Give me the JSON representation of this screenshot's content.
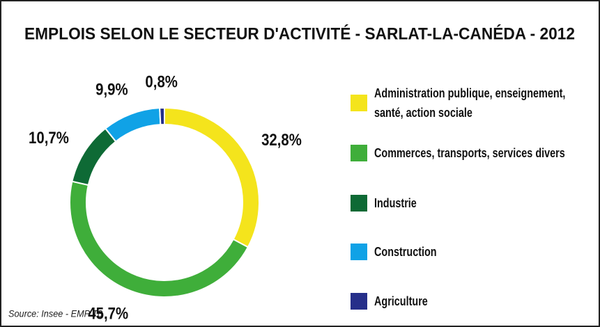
{
  "chart_data": {
    "type": "donut",
    "title": "EMPLOIS SELON LE SECTEUR D'ACTIVITÉ - SARLAT-LA-CANÉDA - 2012",
    "categories": [
      "Administration publique, enseignement, santé, action sociale",
      "Commerces, transports, services divers",
      "Industrie",
      "Construction",
      "Agriculture"
    ],
    "values": [
      32.8,
      45.7,
      10.7,
      9.9,
      0.8
    ],
    "value_labels": [
      "32,8%",
      "45,7%",
      "10,7%",
      "9,9%",
      "0,8%"
    ],
    "colors": [
      "#f4e41c",
      "#3fae3a",
      "#0e6a35",
      "#10a2e6",
      "#262f8a"
    ],
    "source": "Source: Insee - EMP T8"
  }
}
